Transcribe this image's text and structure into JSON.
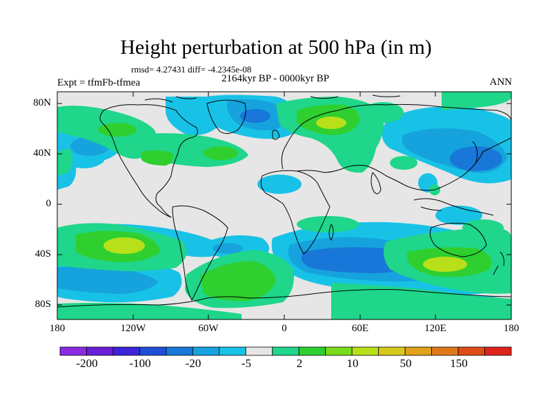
{
  "title": "Height perturbation at 500 hPa (in m)",
  "stats": "rmsd= 4.27431 diff= -4.2345e-08",
  "experiment": "Expt = tfmFb-tfmea",
  "period": "2164kyr BP - 0000kyr BP",
  "season": "ANN",
  "lat_labels": [
    "80N",
    "40N",
    "0",
    "40S",
    "80S"
  ],
  "lon_labels": [
    "180",
    "120W",
    "60W",
    "0",
    "60E",
    "120E",
    "180"
  ],
  "colorbar": {
    "labels": [
      "-200",
      "-100",
      "-20",
      "-5",
      "2",
      "10",
      "50",
      "150"
    ],
    "colors": [
      "#8a2be2",
      "#6a1ed8",
      "#3a26d6",
      "#1f4fd6",
      "#1877d8",
      "#16a3dd",
      "#18c2e6",
      "#e6e6e6",
      "#1fd68a",
      "#2fcf2f",
      "#7adb1a",
      "#b8e01a",
      "#d8c81a",
      "#e0a21a",
      "#e0781a",
      "#e04b1a",
      "#e0231a"
    ]
  },
  "palette": {
    "ocean_background": "#e6e6e6",
    "neg_light": "#18c2e6",
    "neg_mid": "#16a3dd",
    "neg_deep": "#1877d8",
    "pos_light": "#1fd68a",
    "pos_mid": "#2fcf2f",
    "pos_high": "#b8e01a"
  }
}
